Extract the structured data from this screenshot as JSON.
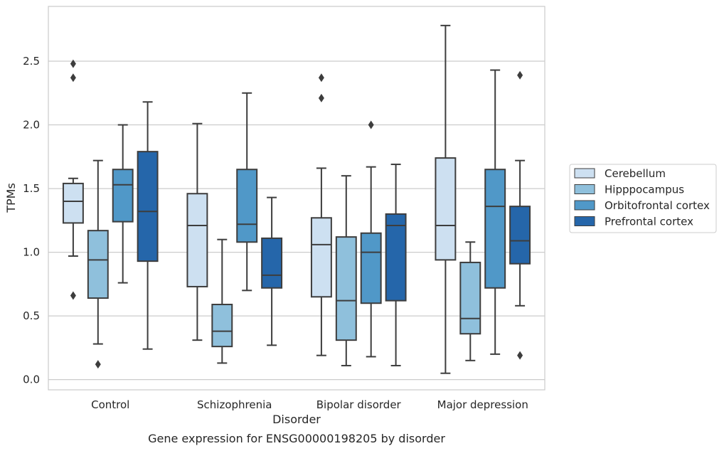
{
  "chart_data": {
    "type": "box",
    "title": "",
    "xlabel": "Disorder",
    "ylabel": "TPMs",
    "caption": "Gene expression for ENSG00000198205 by disorder",
    "ylim": [
      -0.08,
      2.93
    ],
    "yticks": [
      0.0,
      0.5,
      1.0,
      1.5,
      2.0,
      2.5
    ],
    "ytick_labels": [
      "0.0",
      "0.5",
      "1.0",
      "1.5",
      "2.0",
      "2.5"
    ],
    "grid": "horizontal",
    "legend_position": "right",
    "categories": [
      "Control",
      "Schizophrenia",
      "Bipolar disorder",
      "Major depression"
    ],
    "series": [
      {
        "name": "Cerebellum",
        "color": "#cde0f1",
        "boxes": [
          {
            "whislo": 0.97,
            "q1": 1.23,
            "med": 1.4,
            "q3": 1.54,
            "whishi": 1.58,
            "fliers": [
              0.66,
              2.37,
              2.48
            ]
          },
          {
            "whislo": 0.31,
            "q1": 0.73,
            "med": 1.21,
            "q3": 1.46,
            "whishi": 2.01,
            "fliers": []
          },
          {
            "whislo": 0.19,
            "q1": 0.65,
            "med": 1.06,
            "q3": 1.27,
            "whishi": 1.66,
            "fliers": [
              2.21,
              2.37
            ]
          },
          {
            "whislo": 0.05,
            "q1": 0.94,
            "med": 1.21,
            "q3": 1.74,
            "whishi": 2.78,
            "fliers": []
          }
        ]
      },
      {
        "name": "Hipppocampus",
        "color": "#8fc0dc",
        "boxes": [
          {
            "whislo": 0.28,
            "q1": 0.64,
            "med": 0.94,
            "q3": 1.17,
            "whishi": 1.72,
            "fliers": [
              0.12
            ]
          },
          {
            "whislo": 0.13,
            "q1": 0.26,
            "med": 0.38,
            "q3": 0.59,
            "whishi": 1.1,
            "fliers": []
          },
          {
            "whislo": 0.11,
            "q1": 0.31,
            "med": 0.62,
            "q3": 1.12,
            "whishi": 1.6,
            "fliers": []
          },
          {
            "whislo": 0.15,
            "q1": 0.36,
            "med": 0.48,
            "q3": 0.92,
            "whishi": 1.08,
            "fliers": []
          }
        ]
      },
      {
        "name": "Orbitofrontal cortex",
        "color": "#5098c8",
        "boxes": [
          {
            "whislo": 0.76,
            "q1": 1.24,
            "med": 1.53,
            "q3": 1.65,
            "whishi": 2.0,
            "fliers": []
          },
          {
            "whislo": 0.7,
            "q1": 1.08,
            "med": 1.22,
            "q3": 1.65,
            "whishi": 2.25,
            "fliers": []
          },
          {
            "whislo": 0.18,
            "q1": 0.6,
            "med": 1.0,
            "q3": 1.15,
            "whishi": 1.67,
            "fliers": [
              2.0
            ]
          },
          {
            "whislo": 0.2,
            "q1": 0.72,
            "med": 1.36,
            "q3": 1.65,
            "whishi": 2.43,
            "fliers": []
          }
        ]
      },
      {
        "name": "Prefrontal cortex",
        "color": "#2566aa",
        "boxes": [
          {
            "whislo": 0.24,
            "q1": 0.93,
            "med": 1.32,
            "q3": 1.79,
            "whishi": 2.18,
            "fliers": []
          },
          {
            "whislo": 0.27,
            "q1": 0.72,
            "med": 0.82,
            "q3": 1.11,
            "whishi": 1.43,
            "fliers": []
          },
          {
            "whislo": 0.11,
            "q1": 0.62,
            "med": 1.21,
            "q3": 1.3,
            "whishi": 1.69,
            "fliers": []
          },
          {
            "whislo": 0.58,
            "q1": 0.91,
            "med": 1.09,
            "q3": 1.36,
            "whishi": 1.72,
            "fliers": [
              0.19,
              2.39
            ]
          }
        ]
      }
    ]
  }
}
